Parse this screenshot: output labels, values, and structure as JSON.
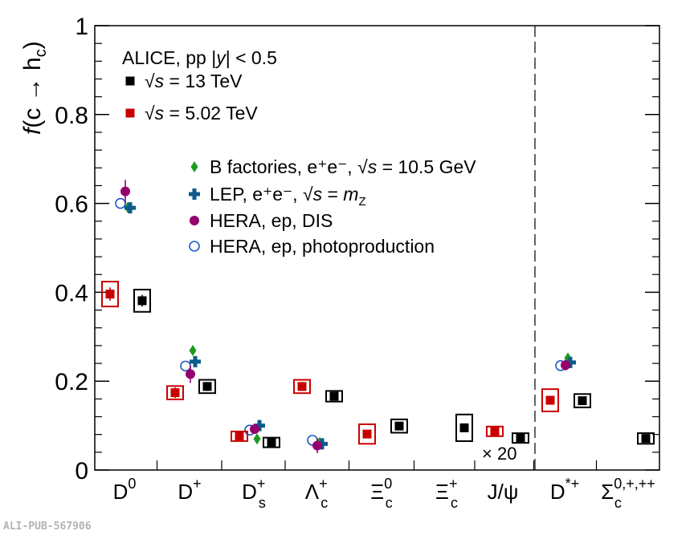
{
  "pub_id": "ALI-PUB-567906",
  "chart_data": {
    "type": "scatter",
    "ylabel_parts": [
      "f",
      "(c → h",
      "c",
      ")"
    ],
    "ylim": [
      0,
      1
    ],
    "yticks": [
      0,
      0.2,
      0.4,
      0.6,
      0.8,
      1
    ],
    "ytick_labels": [
      "0",
      "0.2",
      "0.4",
      "0.6",
      "0.8",
      "1"
    ],
    "categories": [
      {
        "base": "D",
        "sup": "0",
        "sub": ""
      },
      {
        "base": "D",
        "sup": "+",
        "sub": ""
      },
      {
        "base": "D",
        "sup": "+",
        "sub": "s"
      },
      {
        "base": "Λ",
        "sup": "+",
        "sub": "c"
      },
      {
        "base": "Ξ",
        "sup": "0",
        "sub": "c"
      },
      {
        "base": "Ξ",
        "sup": "+",
        "sub": "c"
      },
      {
        "base": "J/ψ",
        "sup": "",
        "sub": ""
      },
      {
        "base": "D",
        "sup": "*+",
        "sub": ""
      },
      {
        "base": "Σ",
        "sup": "0,+,++",
        "sub": "c"
      }
    ],
    "separator_after_category": "J/ψ",
    "scale_note": "× 20",
    "system_label": "ALICE, pp |y| < 0.5",
    "series": [
      {
        "name": "√s = 13 TeV",
        "color": "#000000",
        "marker": "square",
        "sys_box": true,
        "points": [
          {
            "cat": "D0",
            "y": 0.381,
            "err": 0.013,
            "sys": 0.025
          },
          {
            "cat": "D+",
            "y": 0.188,
            "err": 0.01,
            "sys": 0.015
          },
          {
            "cat": "Ds+",
            "y": 0.062,
            "err": 0.004,
            "sys": 0.006
          },
          {
            "cat": "Lc+",
            "y": 0.166,
            "err": 0.008,
            "sys": 0.012
          },
          {
            "cat": "Xic0",
            "y": 0.099,
            "err": 0.008,
            "sys": 0.015
          },
          {
            "cat": "Xic+",
            "y": 0.095,
            "err": 0.008,
            "sys": 0.03
          },
          {
            "cat": "Jpsi",
            "y": 0.072,
            "err": 0.003,
            "sys": 0.007
          },
          {
            "cat": "D*+",
            "y": 0.156,
            "err": 0.008,
            "sys": 0.015
          },
          {
            "cat": "Sc",
            "y": 0.071,
            "err": 0.006,
            "sys": 0.012
          }
        ]
      },
      {
        "name": "√s = 5.02 TeV",
        "color": "#c80000",
        "marker": "square",
        "sys_box": true,
        "points": [
          {
            "cat": "D0",
            "y": 0.396,
            "err": 0.015,
            "sys": 0.028
          },
          {
            "cat": "D+",
            "y": 0.174,
            "err": 0.012,
            "sys": 0.015
          },
          {
            "cat": "Ds+",
            "y": 0.076,
            "err": 0.005,
            "sys": 0.009
          },
          {
            "cat": "Lc+",
            "y": 0.188,
            "err": 0.01,
            "sys": 0.015
          },
          {
            "cat": "Xic0",
            "y": 0.081,
            "err": 0.008,
            "sys": 0.022
          },
          {
            "cat": "Jpsi",
            "y": 0.087,
            "err": 0.003,
            "sys": 0.007
          },
          {
            "cat": "D*+",
            "y": 0.157,
            "err": 0.01,
            "sys": 0.025
          }
        ]
      },
      {
        "name": "B factories, e⁺e⁻, √s = 10.5 GeV",
        "color": "#1e9b1e",
        "marker": "diamond",
        "points": [
          {
            "cat": "D0",
            "y": 0.591,
            "err": 0.006
          },
          {
            "cat": "D+",
            "y": 0.269,
            "err": 0.006
          },
          {
            "cat": "Ds+",
            "y": 0.07,
            "err": 0.004
          },
          {
            "cat": "Lc+",
            "y": 0.062,
            "err": 0.004
          },
          {
            "cat": "D*+",
            "y": 0.252,
            "err": 0.005
          }
        ]
      },
      {
        "name": "LEP, e⁺e⁻, √s = mZ",
        "color": "#0b5a8c",
        "marker": "cross",
        "points": [
          {
            "cat": "D0",
            "y": 0.59,
            "err": 0.01
          },
          {
            "cat": "D+",
            "y": 0.244,
            "err": 0.01
          },
          {
            "cat": "Ds+",
            "y": 0.1,
            "err": 0.008
          },
          {
            "cat": "Lc+",
            "y": 0.059,
            "err": 0.007
          },
          {
            "cat": "D*+",
            "y": 0.242,
            "err": 0.01
          }
        ]
      },
      {
        "name": "HERA, ep, DIS",
        "color": "#96006e",
        "marker": "circle",
        "points": [
          {
            "cat": "D0",
            "y": 0.627,
            "err": 0.026
          },
          {
            "cat": "D+",
            "y": 0.216,
            "err": 0.02
          },
          {
            "cat": "Ds+",
            "y": 0.092,
            "err": 0.01
          },
          {
            "cat": "Lc+",
            "y": 0.055,
            "err": 0.017
          },
          {
            "cat": "D*+",
            "y": 0.236,
            "err": 0.012
          }
        ]
      },
      {
        "name": "HERA, ep, photoproduction",
        "color": "#1e5ac8",
        "marker": "open-circle",
        "points": [
          {
            "cat": "D0",
            "y": 0.6,
            "err": 0.01
          },
          {
            "cat": "D+",
            "y": 0.234,
            "err": 0.01
          },
          {
            "cat": "Ds+",
            "y": 0.09,
            "err": 0.008
          },
          {
            "cat": "Lc+",
            "y": 0.067,
            "err": 0.008
          },
          {
            "cat": "D*+",
            "y": 0.235,
            "err": 0.008
          }
        ]
      }
    ],
    "legend": [
      {
        "text": "√s = 13 TeV",
        "series": 0
      },
      {
        "text": "√s = 5.02 TeV",
        "series": 1
      },
      {
        "text": "B factories, e⁺e⁻, √s = 10.5 GeV",
        "series": 2
      },
      {
        "text": "LEP, e⁺e⁻, √s = mZ",
        "series": 3
      },
      {
        "text": "HERA, ep, DIS",
        "series": 4
      },
      {
        "text": "HERA, ep, photoproduction",
        "series": 5
      }
    ]
  }
}
